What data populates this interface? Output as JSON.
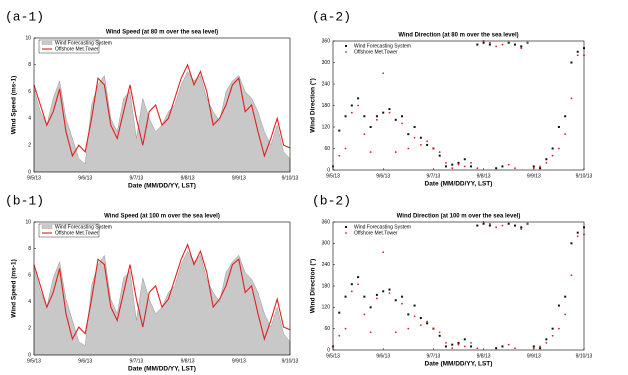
{
  "chart_data": [
    {
      "type": "line",
      "panel_label": "(a-1)",
      "title": "Wind Speed (at 80 m over the sea level)",
      "x_label": "Date (MM/DD/YY, LST)",
      "y_label": "Wind Speed (ms-1)",
      "xlim": [
        0,
        5
      ],
      "xticks": [
        {
          "value": 0,
          "label": "9/5/13"
        },
        {
          "value": 1,
          "label": "9/6/13"
        },
        {
          "value": 2,
          "label": "9/7/13"
        },
        {
          "value": 3,
          "label": "9/8/13"
        },
        {
          "value": 4,
          "label": "9/9/13"
        },
        {
          "value": 5,
          "label": "9/10/13"
        }
      ],
      "ylim": [
        0,
        10
      ],
      "yticks": [
        0,
        2,
        4,
        6,
        8,
        10
      ],
      "x": [
        0,
        0.125,
        0.25,
        0.375,
        0.5,
        0.625,
        0.75,
        0.875,
        1,
        1.125,
        1.25,
        1.375,
        1.5,
        1.625,
        1.75,
        1.875,
        2,
        2.125,
        2.25,
        2.375,
        2.5,
        2.625,
        2.75,
        2.875,
        3,
        3.125,
        3.25,
        3.375,
        3.5,
        3.625,
        3.75,
        3.875,
        4,
        4.125,
        4.25,
        4.375,
        4.5,
        4.625,
        4.75,
        4.875,
        5
      ],
      "series": [
        {
          "name": "Wind Forecasting System",
          "color": "#c8c8c8",
          "area": true,
          "values": [
            6.2,
            4.5,
            3.5,
            5.5,
            6.8,
            4.0,
            2.5,
            1.0,
            0.6,
            5.0,
            6.5,
            7.2,
            4.0,
            3.0,
            5.5,
            6.0,
            2.5,
            5.5,
            4.0,
            3.0,
            3.5,
            4.5,
            5.0,
            6.5,
            7.5,
            6.8,
            7.2,
            5.5,
            4.5,
            3.8,
            6.0,
            6.8,
            7.2,
            6.0,
            5.5,
            4.5,
            3.0,
            2.0,
            3.5,
            1.5,
            1.0
          ]
        },
        {
          "name": "Offshore Met.Tower",
          "color": "#e02020",
          "area": false,
          "values": [
            6.5,
            5.0,
            3.5,
            4.5,
            6.2,
            3.0,
            1.2,
            2.0,
            1.5,
            4.0,
            7.0,
            6.5,
            3.5,
            2.5,
            4.5,
            6.5,
            4.0,
            2.0,
            4.5,
            5.0,
            3.5,
            4.0,
            5.5,
            7.0,
            8.0,
            6.5,
            7.5,
            6.0,
            3.5,
            4.0,
            5.0,
            6.5,
            7.0,
            4.5,
            5.0,
            3.0,
            1.2,
            2.5,
            4.0,
            2.0,
            1.8
          ]
        }
      ]
    },
    {
      "type": "scatter",
      "panel_label": "(a-2)",
      "title": "Wind Direction (at 80 m over the sea level)",
      "x_label": "Date (MM/DD/YY, LST)",
      "y_label": "Wind Direction (°)",
      "xlim": [
        0,
        5
      ],
      "xticks": [
        {
          "value": 0,
          "label": "9/5/13"
        },
        {
          "value": 1,
          "label": "9/6/13"
        },
        {
          "value": 2,
          "label": "9/7/13"
        },
        {
          "value": 3,
          "label": "9/8/13"
        },
        {
          "value": 4,
          "label": "9/9/13"
        },
        {
          "value": 5,
          "label": "9/10/13"
        }
      ],
      "ylim": [
        0,
        360
      ],
      "yticks": [
        0,
        60,
        120,
        180,
        240,
        300,
        360
      ],
      "x": [
        0,
        0.125,
        0.25,
        0.375,
        0.5,
        0.625,
        0.75,
        0.875,
        1,
        1.125,
        1.25,
        1.375,
        1.5,
        1.625,
        1.75,
        1.875,
        2,
        2.125,
        2.25,
        2.375,
        2.5,
        2.625,
        2.75,
        2.875,
        3,
        3.125,
        3.25,
        3.375,
        3.5,
        3.625,
        3.75,
        3.875,
        4,
        4.125,
        4.25,
        4.375,
        4.5,
        4.625,
        4.75,
        4.875,
        5
      ],
      "series": [
        {
          "name": "Wind Forecasting System",
          "color": "#111111",
          "marker": "square",
          "values": [
            10,
            110,
            150,
            180,
            200,
            150,
            120,
            150,
            160,
            170,
            140,
            150,
            100,
            120,
            90,
            70,
            60,
            40,
            10,
            15,
            20,
            30,
            10,
            350,
            355,
            350,
            5,
            10,
            355,
            350,
            345,
            355,
            10,
            5,
            30,
            60,
            120,
            150,
            300,
            330,
            340
          ]
        },
        {
          "name": "Offshore Met.Tower",
          "color": "#e02020",
          "marker": "circle",
          "values": [
            10,
            40,
            60,
            160,
            180,
            100,
            50,
            140,
            270,
            160,
            50,
            130,
            60,
            90,
            70,
            80,
            60,
            50,
            20,
            5,
            15,
            10,
            20,
            5,
            360,
            355,
            345,
            350,
            15,
            5,
            340,
            355,
            5,
            10,
            20,
            40,
            60,
            100,
            200,
            320,
            320
          ]
        }
      ]
    },
    {
      "type": "line",
      "panel_label": "(b-1)",
      "title": "Wind Speed (at 100 m over the sea level)",
      "x_label": "Date (MM/DD/YY, LST)",
      "y_label": "Wind Speed (ms-1)",
      "xlim": [
        0,
        5
      ],
      "xticks": [
        {
          "value": 0,
          "label": "9/5/13"
        },
        {
          "value": 1,
          "label": "9/6/13"
        },
        {
          "value": 2,
          "label": "9/7/13"
        },
        {
          "value": 3,
          "label": "9/8/13"
        },
        {
          "value": 4,
          "label": "9/9/13"
        },
        {
          "value": 5,
          "label": "9/10/13"
        }
      ],
      "ylim": [
        0,
        10
      ],
      "yticks": [
        0,
        2,
        4,
        6,
        8,
        10
      ],
      "x": [
        0,
        0.125,
        0.25,
        0.375,
        0.5,
        0.625,
        0.75,
        0.875,
        1,
        1.125,
        1.25,
        1.375,
        1.5,
        1.625,
        1.75,
        1.875,
        2,
        2.125,
        2.25,
        2.375,
        2.5,
        2.625,
        2.75,
        2.875,
        3,
        3.125,
        3.25,
        3.375,
        3.5,
        3.625,
        3.75,
        3.875,
        4,
        4.125,
        4.25,
        4.375,
        4.5,
        4.625,
        4.75,
        4.875,
        5
      ],
      "series": [
        {
          "name": "Wind Forecasting System",
          "color": "#c8c8c8",
          "area": true,
          "values": [
            6.5,
            4.8,
            3.6,
            5.8,
            7.0,
            4.2,
            2.6,
            1.0,
            0.7,
            5.2,
            6.8,
            7.5,
            4.2,
            3.1,
            5.8,
            6.3,
            2.6,
            5.8,
            4.2,
            3.1,
            3.6,
            4.7,
            5.2,
            6.8,
            7.8,
            7.0,
            7.5,
            5.7,
            4.7,
            4.0,
            6.2,
            7.0,
            7.5,
            6.2,
            5.7,
            4.7,
            3.1,
            2.1,
            3.6,
            1.6,
            1.0
          ]
        },
        {
          "name": "Offshore Met.Tower",
          "color": "#e02020",
          "area": false,
          "values": [
            6.8,
            5.2,
            3.6,
            4.7,
            6.5,
            3.1,
            1.2,
            2.1,
            1.6,
            4.2,
            7.2,
            6.8,
            3.6,
            2.6,
            4.7,
            6.8,
            4.2,
            2.1,
            4.7,
            5.2,
            3.6,
            4.2,
            5.7,
            7.2,
            8.3,
            6.8,
            7.8,
            6.2,
            3.6,
            4.2,
            5.2,
            6.8,
            7.2,
            4.7,
            5.2,
            3.1,
            1.2,
            2.6,
            4.2,
            2.1,
            1.9
          ]
        }
      ]
    },
    {
      "type": "scatter",
      "panel_label": "(b-2)",
      "title": "Wind Direction (at 100 m over the sea level)",
      "x_label": "Date (MM/DD/YY, LST)",
      "y_label": "Wind Direction (°)",
      "xlim": [
        0,
        5
      ],
      "xticks": [
        {
          "value": 0,
          "label": "9/5/13"
        },
        {
          "value": 1,
          "label": "9/6/13"
        },
        {
          "value": 2,
          "label": "9/7/13"
        },
        {
          "value": 3,
          "label": "9/8/13"
        },
        {
          "value": 4,
          "label": "9/9/13"
        },
        {
          "value": 5,
          "label": "9/10/13"
        }
      ],
      "ylim": [
        0,
        360
      ],
      "yticks": [
        0,
        60,
        120,
        180,
        240,
        300,
        360
      ],
      "x": [
        0,
        0.125,
        0.25,
        0.375,
        0.5,
        0.625,
        0.75,
        0.875,
        1,
        1.125,
        1.25,
        1.375,
        1.5,
        1.625,
        1.75,
        1.875,
        2,
        2.125,
        2.25,
        2.375,
        2.5,
        2.625,
        2.75,
        2.875,
        3,
        3.125,
        3.25,
        3.375,
        3.5,
        3.625,
        3.75,
        3.875,
        4,
        4.125,
        4.25,
        4.375,
        4.5,
        4.625,
        4.75,
        4.875,
        5
      ],
      "series": [
        {
          "name": "Wind Forecasting System",
          "color": "#111111",
          "marker": "square",
          "values": [
            10,
            105,
            150,
            185,
            205,
            150,
            120,
            155,
            165,
            170,
            140,
            150,
            100,
            125,
            90,
            75,
            60,
            40,
            10,
            15,
            20,
            30,
            10,
            350,
            355,
            350,
            5,
            10,
            355,
            350,
            345,
            355,
            10,
            5,
            30,
            60,
            125,
            150,
            300,
            330,
            345
          ]
        },
        {
          "name": "Offshore Met.Tower",
          "color": "#e02020",
          "marker": "circle",
          "values": [
            10,
            40,
            60,
            165,
            185,
            100,
            50,
            145,
            275,
            160,
            50,
            130,
            60,
            95,
            70,
            80,
            60,
            50,
            20,
            5,
            15,
            10,
            20,
            5,
            360,
            355,
            345,
            350,
            15,
            5,
            340,
            355,
            5,
            10,
            20,
            40,
            60,
            100,
            210,
            320,
            325
          ]
        }
      ]
    }
  ]
}
